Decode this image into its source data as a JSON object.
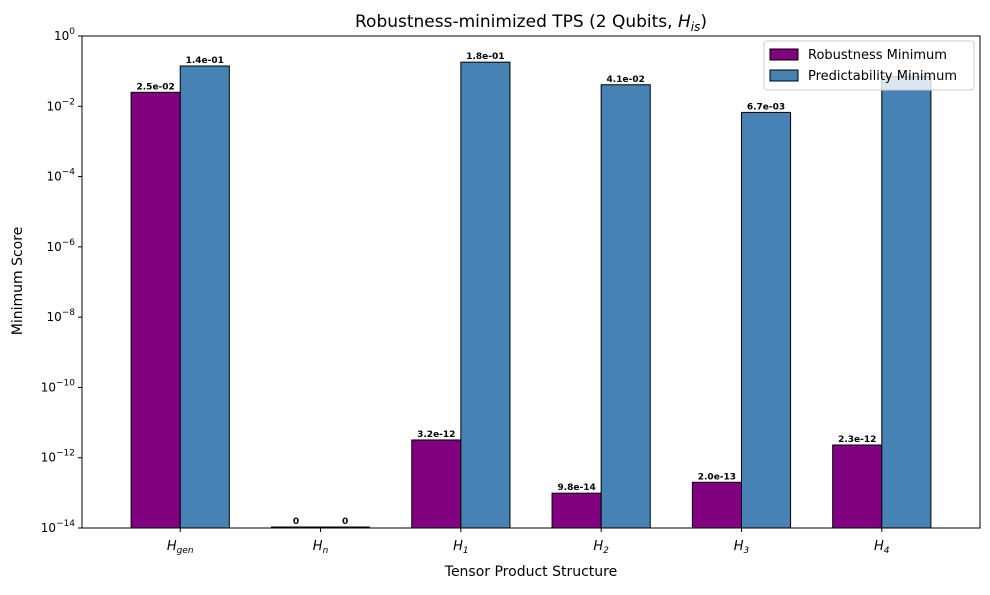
{
  "chart_data": {
    "type": "bar",
    "title": {
      "prefix": "Robustness-minimized TPS (2 Qubits, ",
      "math_base": "H",
      "math_sub": "is",
      "suffix": ")"
    },
    "xlabel": "Tensor Product Structure",
    "ylabel": "Minimum Score",
    "yscale": "log",
    "ylim": [
      1e-14,
      1
    ],
    "y_ticks": [
      -14,
      -12,
      -10,
      -8,
      -6,
      -4,
      -2,
      0
    ],
    "categories": [
      {
        "base": "H",
        "sub": "gen"
      },
      {
        "base": "H",
        "sub": "n"
      },
      {
        "base": "H",
        "sub": "1"
      },
      {
        "base": "H",
        "sub": "2"
      },
      {
        "base": "H",
        "sub": "3"
      },
      {
        "base": "H",
        "sub": "4"
      }
    ],
    "series": [
      {
        "name": "Robustness Minimum",
        "color": "#800080",
        "values": [
          0.025,
          0,
          3.2e-12,
          9.8e-14,
          2e-13,
          2.3e-12
        ],
        "labels": [
          "2.5e-02",
          "0",
          "3.2e-12",
          "9.8e-14",
          "2.0e-13",
          "2.3e-12"
        ]
      },
      {
        "name": "Predictability Minimum",
        "color": "#4682b4",
        "values": [
          0.14,
          0,
          0.18,
          0.041,
          0.0067,
          0.07
        ],
        "labels": [
          "1.4e-01",
          "0",
          "1.8e-01",
          "4.1e-02",
          "6.7e-03",
          ""
        ]
      }
    ],
    "legend_position": "top-right",
    "grid": false
  }
}
